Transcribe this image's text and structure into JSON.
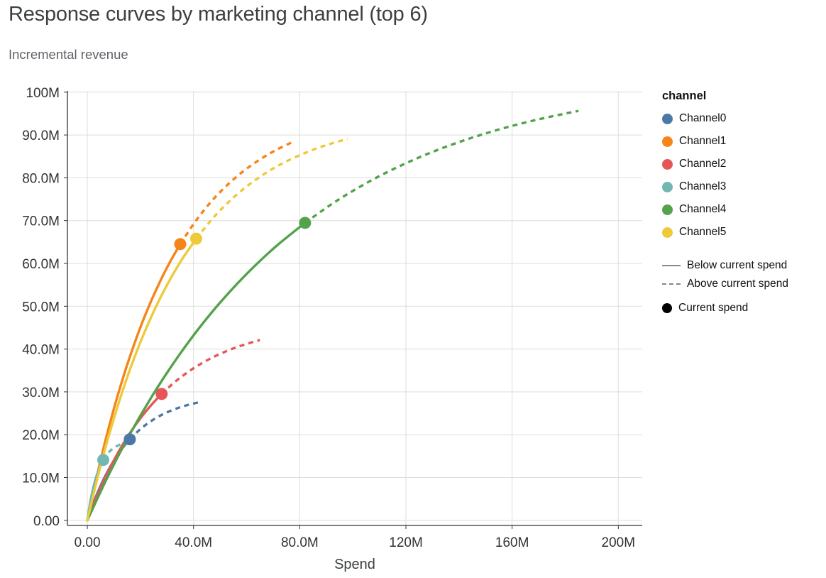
{
  "header": {
    "title": "Response curves by marketing channel (top 6)",
    "subtitle": "Incremental revenue"
  },
  "chart_data": {
    "type": "line",
    "title": "Response curves by marketing channel (top 6)",
    "subtitle": "Incremental revenue",
    "xlabel": "Spend",
    "ylabel": "Incremental revenue",
    "units": "millions",
    "grid": true,
    "legend_position": "right",
    "xlim": [
      -7.5,
      209
    ],
    "ylim": [
      -1.2,
      100.3
    ],
    "x_ticks": [
      {
        "value": 0,
        "label": "0.00"
      },
      {
        "value": 40,
        "label": "40.0M"
      },
      {
        "value": 80,
        "label": "80.0M"
      },
      {
        "value": 120,
        "label": "120M"
      },
      {
        "value": 160,
        "label": "160M"
      },
      {
        "value": 200,
        "label": "200M"
      }
    ],
    "y_ticks": [
      {
        "value": 0,
        "label": "0.00"
      },
      {
        "value": 10,
        "label": "10.0M"
      },
      {
        "value": 20,
        "label": "20.0M"
      },
      {
        "value": 30,
        "label": "30.0M"
      },
      {
        "value": 40,
        "label": "40.0M"
      },
      {
        "value": 50,
        "label": "50.0M"
      },
      {
        "value": 60,
        "label": "60.0M"
      },
      {
        "value": 70,
        "label": "70.0M"
      },
      {
        "value": 80,
        "label": "80.0M"
      },
      {
        "value": 90,
        "label": "90.0M"
      },
      {
        "value": 100,
        "label": "100M"
      }
    ],
    "legend": {
      "title": "channel",
      "stroke_color": "#888888",
      "line_styles": [
        {
          "label": "Below current spend",
          "style": "solid"
        },
        {
          "label": "Above current spend",
          "style": "dashed"
        }
      ],
      "point": {
        "label": "Current spend",
        "color": "#000000"
      }
    },
    "series": [
      {
        "name": "Channel0",
        "color": "#4c78a8",
        "current": [
          16,
          18.92
        ],
        "solid": [
          [
            0,
            0
          ],
          [
            2,
            3.54
          ],
          [
            4,
            6.66
          ],
          [
            6,
            9.4
          ],
          [
            8,
            11.82
          ],
          [
            10,
            13.94
          ],
          [
            12,
            15.82
          ],
          [
            14,
            17.47
          ],
          [
            16,
            18.92
          ]
        ],
        "dashed": [
          [
            16,
            18.92
          ],
          [
            20,
            21.32
          ],
          [
            24,
            23.18
          ],
          [
            28,
            24.63
          ],
          [
            32,
            25.74
          ],
          [
            36,
            26.61
          ],
          [
            40,
            27.28
          ],
          [
            43,
            27.69
          ]
        ]
      },
      {
        "name": "Channel1",
        "color": "#f58518",
        "current": [
          35,
          64.51
        ],
        "solid": [
          [
            0,
            0
          ],
          [
            3.5,
            10.05
          ],
          [
            7,
            19.06
          ],
          [
            10.5,
            27.13
          ],
          [
            14,
            34.37
          ],
          [
            17.5,
            40.86
          ],
          [
            21,
            46.68
          ],
          [
            24.5,
            51.89
          ],
          [
            28,
            56.56
          ],
          [
            31.5,
            60.75
          ],
          [
            35,
            64.51
          ]
        ],
        "dashed": [
          [
            35,
            64.51
          ],
          [
            41,
            70.07
          ],
          [
            47,
            74.67
          ],
          [
            53,
            78.49
          ],
          [
            59,
            81.65
          ],
          [
            65,
            84.28
          ],
          [
            71,
            86.46
          ],
          [
            77,
            88.27
          ]
        ]
      },
      {
        "name": "Channel2",
        "color": "#e45756",
        "current": [
          28,
          29.52
        ],
        "solid": [
          [
            0,
            0
          ],
          [
            4,
            6.22
          ],
          [
            8,
            11.61
          ],
          [
            12,
            16.28
          ],
          [
            16,
            20.33
          ],
          [
            20,
            23.84
          ],
          [
            24,
            26.88
          ],
          [
            28,
            29.52
          ]
        ],
        "dashed": [
          [
            28,
            29.52
          ],
          [
            33,
            32.33
          ],
          [
            38,
            34.68
          ],
          [
            43,
            36.64
          ],
          [
            48,
            38.29
          ],
          [
            53,
            39.66
          ],
          [
            58,
            40.81
          ],
          [
            65,
            42.12
          ]
        ]
      },
      {
        "name": "Channel3",
        "color": "#72b7b2",
        "current": [
          6,
          14.1
        ],
        "solid": [
          [
            0,
            0
          ],
          [
            1,
            3.89
          ],
          [
            2,
            6.97
          ],
          [
            3,
            9.42
          ],
          [
            4,
            11.35
          ],
          [
            5,
            12.89
          ],
          [
            6,
            14.1
          ]
        ],
        "dashed": [
          [
            6,
            14.1
          ],
          [
            8,
            15.83
          ],
          [
            10,
            16.92
          ],
          [
            12,
            17.6
          ],
          [
            14,
            18.03
          ],
          [
            16,
            18.3
          ],
          [
            18,
            18.47
          ]
        ]
      },
      {
        "name": "Channel4",
        "color": "#54a24b",
        "current": [
          82,
          69.48
        ],
        "solid": [
          [
            0,
            0
          ],
          [
            8,
            10.57
          ],
          [
            16,
            20.08
          ],
          [
            24,
            28.62
          ],
          [
            32,
            36.29
          ],
          [
            40,
            43.2
          ],
          [
            48,
            49.4
          ],
          [
            56,
            54.97
          ],
          [
            64,
            59.99
          ],
          [
            72,
            64.49
          ],
          [
            82,
            69.48
          ]
        ],
        "dashed": [
          [
            82,
            69.48
          ],
          [
            95,
            75.05
          ],
          [
            110,
            80.39
          ],
          [
            125,
            84.76
          ],
          [
            140,
            88.35
          ],
          [
            155,
            91.27
          ],
          [
            170,
            93.67
          ],
          [
            185,
            95.63
          ]
        ]
      },
      {
        "name": "Channel5",
        "color": "#eeca3b",
        "current": [
          41,
          65.78
        ],
        "solid": [
          [
            0,
            0
          ],
          [
            4,
            10.36
          ],
          [
            8,
            19.58
          ],
          [
            12,
            27.79
          ],
          [
            16,
            35.1
          ],
          [
            20,
            41.62
          ],
          [
            24,
            47.42
          ],
          [
            28,
            52.58
          ],
          [
            32,
            57.18
          ],
          [
            36,
            61.28
          ],
          [
            41,
            65.78
          ]
        ],
        "dashed": [
          [
            41,
            65.78
          ],
          [
            48,
            71.06
          ],
          [
            55,
            75.38
          ],
          [
            62,
            78.91
          ],
          [
            69,
            81.8
          ],
          [
            76,
            84.15
          ],
          [
            84,
            86.31
          ],
          [
            91,
            87.83
          ],
          [
            98,
            89.07
          ]
        ]
      }
    ]
  }
}
